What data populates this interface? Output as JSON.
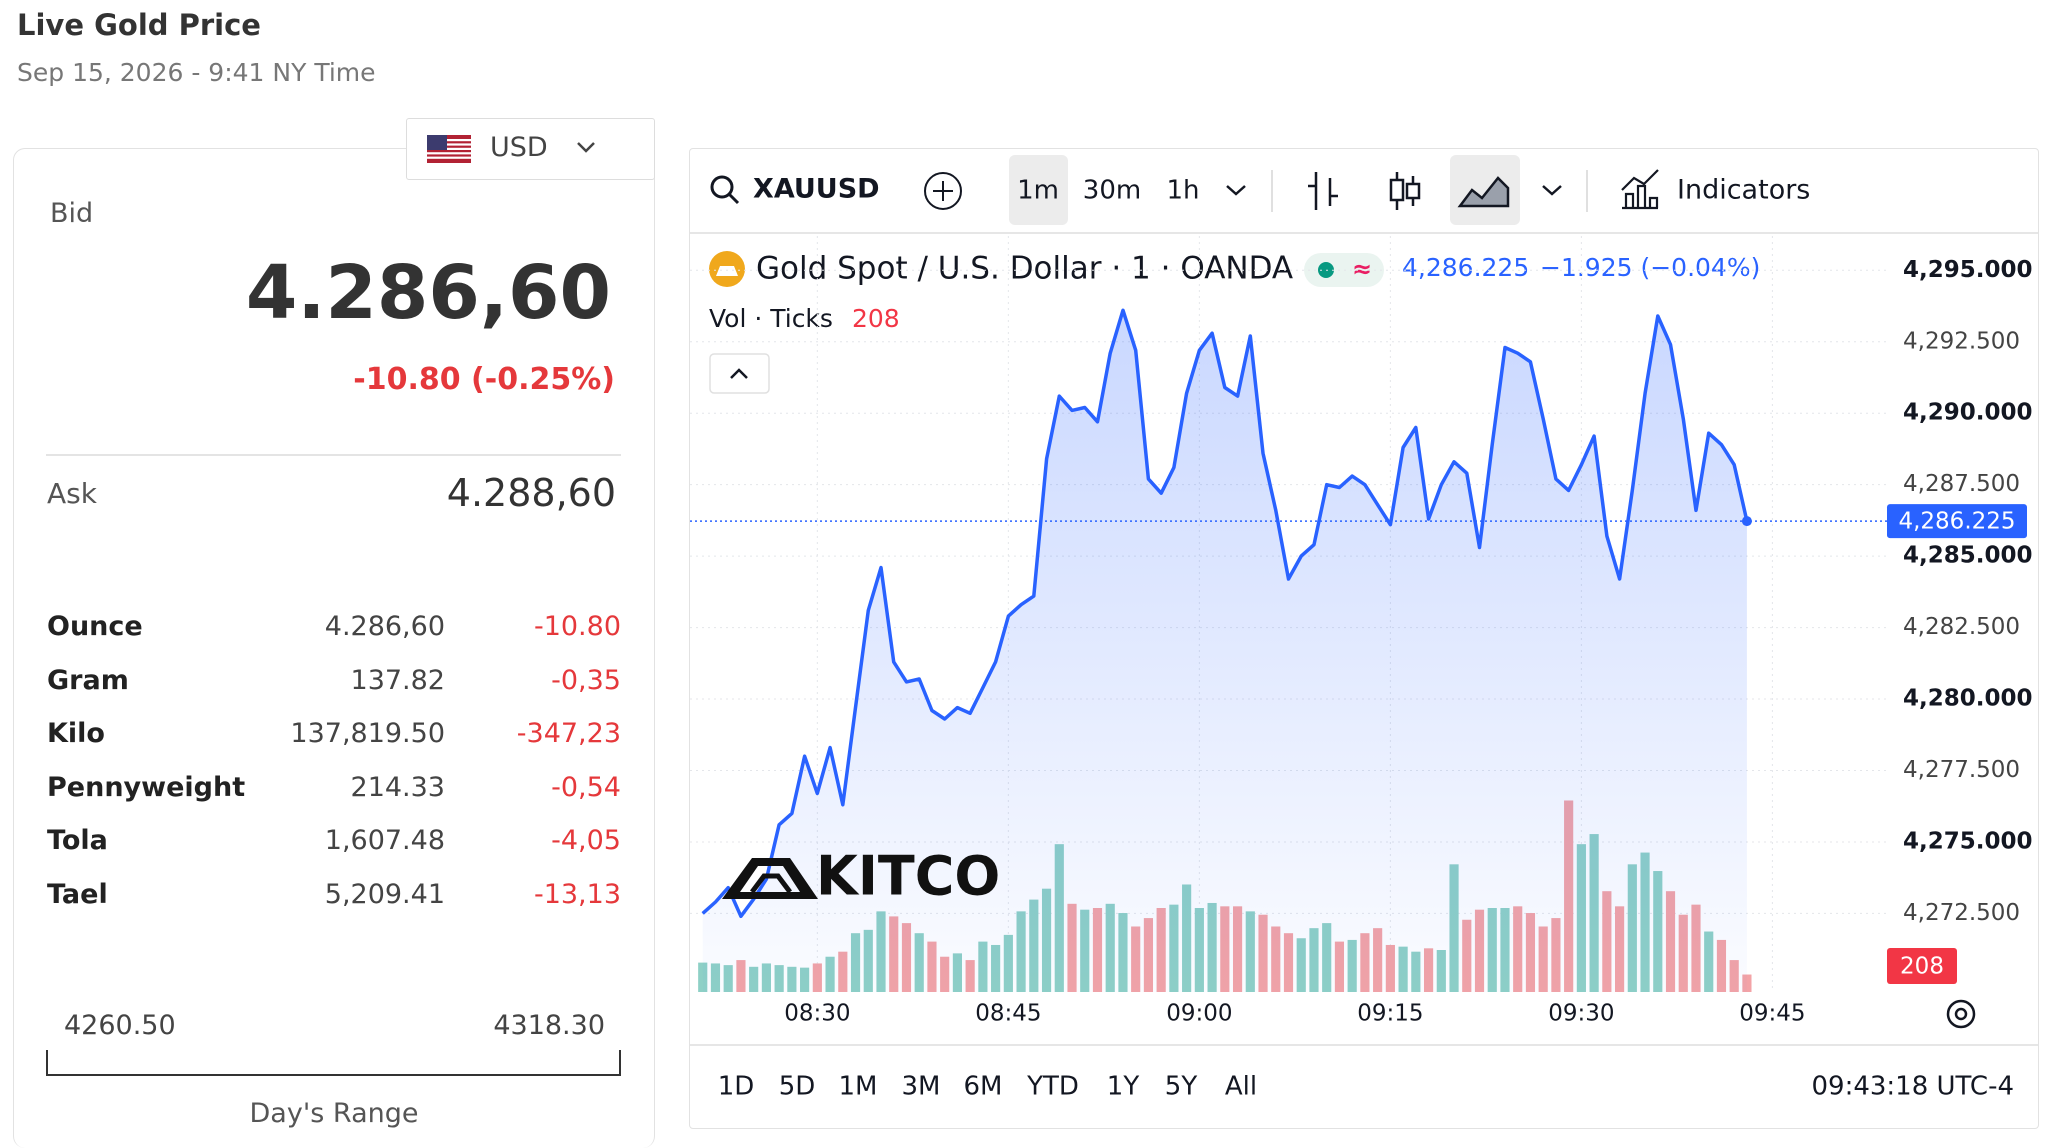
{
  "header": {
    "title": "Live Gold Price",
    "timestamp": "Sep 15, 2026 - 9:41 NY Time"
  },
  "currency": "USD",
  "quote": {
    "bid_label": "Bid",
    "bid": "4.286,60",
    "change": "-10.80 (-0.25%)",
    "ask_label": "Ask",
    "ask": "4.288,60"
  },
  "units": [
    [
      "Ounce",
      "4.286,60",
      "-10.80"
    ],
    [
      "Gram",
      "137.82",
      "-0,35"
    ],
    [
      "Kilo",
      "137,819.50",
      "-347,23"
    ],
    [
      "Pennyweight",
      "214.33",
      "-0,54"
    ],
    [
      "Tola",
      "1,607.48",
      "-4,05"
    ],
    [
      "Tael",
      "5,209.41",
      "-13,13"
    ]
  ],
  "day_range": {
    "low": "4260.50",
    "high": "4318.30",
    "label": "Day's Range"
  },
  "toolbar": {
    "symbol": "XAUUSD",
    "intervals": [
      "1m",
      "30m",
      "1h"
    ],
    "indicators": "Indicators"
  },
  "legend": {
    "instrument": "Gold Spot / U.S. Dollar · 1 · OANDA",
    "change": "−1.925 (−0.04%)",
    "volume_label": "Vol · Ticks"
  },
  "logo": "KITCO",
  "ranges": [
    "1D",
    "5D",
    "1M",
    "3M",
    "6M",
    "YTD",
    "1Y",
    "5Y",
    "All"
  ],
  "clock": "09:43:18 UTC-4",
  "chart_data": {
    "type": "line",
    "x": [
      "08:21",
      "08:22",
      "08:23",
      "08:24",
      "08:25",
      "08:26",
      "08:27",
      "08:28",
      "08:29",
      "08:30",
      "08:31",
      "08:32",
      "08:33",
      "08:34",
      "08:35",
      "08:36",
      "08:37",
      "08:38",
      "08:39",
      "08:40",
      "08:41",
      "08:42",
      "08:43",
      "08:44",
      "08:45",
      "08:46",
      "08:47",
      "08:48",
      "08:49",
      "08:50",
      "08:51",
      "08:52",
      "08:53",
      "08:54",
      "08:55",
      "08:56",
      "08:57",
      "08:58",
      "08:59",
      "09:00",
      "09:01",
      "09:02",
      "09:03",
      "09:04",
      "09:05",
      "09:06",
      "09:07",
      "09:08",
      "09:09",
      "09:10",
      "09:11",
      "09:12",
      "09:13",
      "09:14",
      "09:15",
      "09:16",
      "09:17",
      "09:18",
      "09:19",
      "09:20",
      "09:21",
      "09:22",
      "09:23",
      "09:24",
      "09:25",
      "09:26",
      "09:27",
      "09:28",
      "09:29",
      "09:30",
      "09:31",
      "09:32",
      "09:33",
      "09:34",
      "09:35",
      "09:36",
      "09:37",
      "09:38",
      "09:39",
      "09:40",
      "09:41",
      "09:42",
      "09:43"
    ],
    "series": [
      {
        "name": "Gold Spot / U.S. Dollar",
        "color": "#2962ff",
        "values": [
          4272.5,
          4272.9,
          4273.4,
          4272.4,
          4273.0,
          4273.7,
          4275.6,
          4276.0,
          4278.0,
          4276.7,
          4278.3,
          4276.3,
          4279.7,
          4283.1,
          4284.6,
          4281.3,
          4280.6,
          4280.7,
          4279.6,
          4279.3,
          4279.7,
          4279.5,
          4280.4,
          4281.3,
          4282.9,
          4283.3,
          4283.6,
          4288.4,
          4290.6,
          4290.1,
          4290.2,
          4289.7,
          4292.1,
          4293.6,
          4292.2,
          4287.7,
          4287.2,
          4288.1,
          4290.7,
          4292.2,
          4292.8,
          4290.9,
          4290.6,
          4292.7,
          4288.6,
          4286.6,
          4284.2,
          4285.0,
          4285.4,
          4287.5,
          4287.4,
          4287.8,
          4287.5,
          4286.8,
          4286.1,
          4288.8,
          4289.5,
          4286.3,
          4287.5,
          4288.3,
          4287.9,
          4285.3,
          4288.9,
          4292.3,
          4292.1,
          4291.8,
          4289.8,
          4287.7,
          4287.3,
          4288.2,
          4289.2,
          4285.7,
          4284.2,
          4287.3,
          4290.7,
          4293.4,
          4292.4,
          4289.8,
          4286.6,
          4289.3,
          4288.9,
          4288.2,
          4286.225
        ]
      },
      {
        "name": "Vol",
        "axis": "y2",
        "up_color": "#8ed0c6",
        "down_color": "#f3a3a6",
        "values": [
          350,
          340,
          320,
          380,
          300,
          340,
          320,
          300,
          290,
          340,
          420,
          480,
          700,
          740,
          960,
          900,
          820,
          700,
          600,
          420,
          460,
          380,
          600,
          560,
          680,
          960,
          1100,
          1230,
          1760,
          1050,
          980,
          1000,
          1050,
          940,
          780,
          880,
          1000,
          1040,
          1280,
          1000,
          1060,
          1020,
          1020,
          960,
          920,
          780,
          700,
          640,
          760,
          820,
          600,
          620,
          700,
          760,
          560,
          540,
          480,
          520,
          500,
          1520,
          860,
          980,
          1000,
          1000,
          1020,
          940,
          780,
          880,
          2280,
          1760,
          1880,
          1200,
          1020,
          1520,
          1660,
          1440,
          1200,
          920,
          1040,
          720,
          620,
          380,
          208
        ]
      }
    ],
    "last_label": "4,286.225",
    "xlim": [
      "08:20",
      "09:54"
    ],
    "xticks": [
      "08:30",
      "08:45",
      "09:00",
      "09:15",
      "09:30",
      "09:45"
    ],
    "ylim": [
      4269.75,
      4296.2
    ],
    "yticks": [
      {
        "value": 4272.5,
        "label": "4,272.500"
      },
      {
        "value": 4275,
        "label": "4,275.000"
      },
      {
        "value": 4277.5,
        "label": "4,277.500"
      },
      {
        "value": 4280,
        "label": "4,280.000"
      },
      {
        "value": 4282.5,
        "label": "4,282.500"
      },
      {
        "value": 4285,
        "label": "4,285.000"
      },
      {
        "value": 4287.5,
        "label": "4,287.500"
      },
      {
        "value": 4290,
        "label": "4,290.000"
      },
      {
        "value": 4292.5,
        "label": "4,292.500"
      },
      {
        "value": 4295,
        "label": "4,295.000"
      }
    ],
    "y2lim": [
      0,
      9000
    ],
    "grid": true
  }
}
